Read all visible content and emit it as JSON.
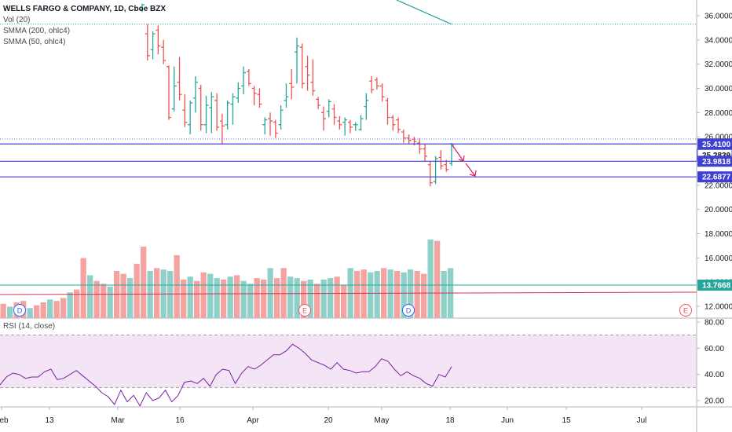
{
  "header": {
    "symbol": "WELLS FARGO & COMPANY, 1D, Cboe BZX",
    "indicators": [
      "Vol (20)",
      "SMMA (200, ohlc4)",
      "SMMA (50, ohlc4)"
    ]
  },
  "rsi_panel": {
    "label": "RSI (14, close)"
  },
  "colors": {
    "up": "#26a69a",
    "down": "#ef5350",
    "volume_up": "#8fd1c9",
    "volume_down": "#f5a3a1",
    "horizontal_line": "#3f3fd0",
    "smma200": "#26a69a",
    "smma50": "#d5334e",
    "rsi_line": "#7b1fa2",
    "rsi_band": "#f3e5f5"
  },
  "chart_data": [
    {
      "type": "candlestick",
      "title": "WELLS FARGO & COMPANY, 1D, Cboe BZX",
      "x_tick_labels": [
        "Feb",
        "13",
        "Mar",
        "16",
        "Apr",
        "20",
        "May",
        "18",
        "Jun",
        "15",
        "Jul"
      ],
      "y_ticks": [
        "36.0000",
        "34.0000",
        "32.0000",
        "30.0000",
        "28.0000",
        "26.0000",
        "24.0000",
        "22.0000",
        "20.0000",
        "18.0000",
        "16.0000",
        "14.0000",
        "12.0000"
      ],
      "ylim": [
        11,
        37
      ],
      "bars": [
        {
          "o": 36.5,
          "h": 37.0,
          "l": 36.3,
          "c": 36.9
        },
        {
          "o": 34.5,
          "h": 35.3,
          "l": 32.3,
          "c": 32.7
        },
        {
          "o": 33.2,
          "h": 34.7,
          "l": 32.4,
          "c": 34.5
        },
        {
          "o": 34.8,
          "h": 35.2,
          "l": 32.8,
          "c": 33.5
        },
        {
          "o": 33.4,
          "h": 34.0,
          "l": 32.0,
          "c": 32.3
        },
        {
          "o": 31.8,
          "h": 31.9,
          "l": 27.4,
          "c": 27.6
        },
        {
          "o": 28.3,
          "h": 31.8,
          "l": 28.1,
          "c": 30.2
        },
        {
          "o": 30.5,
          "h": 32.6,
          "l": 29.0,
          "c": 29.5
        },
        {
          "o": 28.2,
          "h": 29.5,
          "l": 26.8,
          "c": 27.2
        },
        {
          "o": 27.0,
          "h": 29.0,
          "l": 26.2,
          "c": 28.8
        },
        {
          "o": 29.2,
          "h": 31.0,
          "l": 28.0,
          "c": 30.5
        },
        {
          "o": 30.0,
          "h": 30.3,
          "l": 26.5,
          "c": 27.0
        },
        {
          "o": 27.0,
          "h": 29.4,
          "l": 26.3,
          "c": 28.6
        },
        {
          "o": 28.4,
          "h": 29.7,
          "l": 26.3,
          "c": 29.3
        },
        {
          "o": 29.0,
          "h": 29.6,
          "l": 26.5,
          "c": 26.8
        },
        {
          "o": 27.3,
          "h": 27.9,
          "l": 25.4,
          "c": 26.9
        },
        {
          "o": 27.0,
          "h": 29.0,
          "l": 26.6,
          "c": 28.8
        },
        {
          "o": 28.7,
          "h": 29.6,
          "l": 27.0,
          "c": 29.3
        },
        {
          "o": 29.2,
          "h": 30.5,
          "l": 28.8,
          "c": 30.0
        },
        {
          "o": 30.2,
          "h": 31.8,
          "l": 29.5,
          "c": 31.3
        },
        {
          "o": 31.4,
          "h": 31.6,
          "l": 30.2,
          "c": 30.4
        },
        {
          "o": 30.0,
          "h": 30.2,
          "l": 28.6,
          "c": 29.6
        },
        {
          "o": 29.5,
          "h": 30.0,
          "l": 28.4,
          "c": 28.7
        },
        {
          "o": 27.0,
          "h": 27.6,
          "l": 26.2,
          "c": 27.4
        },
        {
          "o": 27.5,
          "h": 28.0,
          "l": 26.1,
          "c": 27.3
        },
        {
          "o": 27.2,
          "h": 27.4,
          "l": 25.9,
          "c": 26.3
        },
        {
          "o": 27.0,
          "h": 28.6,
          "l": 26.6,
          "c": 28.2
        },
        {
          "o": 29.0,
          "h": 30.4,
          "l": 28.4,
          "c": 29.3
        },
        {
          "o": 30.4,
          "h": 31.6,
          "l": 29.1,
          "c": 30.1
        },
        {
          "o": 33.0,
          "h": 34.2,
          "l": 30.4,
          "c": 33.5
        },
        {
          "o": 33.4,
          "h": 33.7,
          "l": 30.0,
          "c": 30.4
        },
        {
          "o": 31.8,
          "h": 32.7,
          "l": 29.8,
          "c": 31.1
        },
        {
          "o": 30.5,
          "h": 32.4,
          "l": 29.4,
          "c": 29.8
        },
        {
          "o": 29.1,
          "h": 29.3,
          "l": 28.3,
          "c": 28.6
        },
        {
          "o": 28.0,
          "h": 28.5,
          "l": 26.5,
          "c": 27.5
        },
        {
          "o": 28.1,
          "h": 29.1,
          "l": 27.6,
          "c": 28.9
        },
        {
          "o": 28.3,
          "h": 28.7,
          "l": 27.0,
          "c": 27.6
        },
        {
          "o": 27.3,
          "h": 27.7,
          "l": 26.6,
          "c": 27.0
        },
        {
          "o": 27.2,
          "h": 27.6,
          "l": 26.1,
          "c": 27.4
        },
        {
          "o": 27.2,
          "h": 27.4,
          "l": 26.3,
          "c": 26.8
        },
        {
          "o": 27.0,
          "h": 27.2,
          "l": 26.5,
          "c": 27.0
        },
        {
          "o": 26.6,
          "h": 27.8,
          "l": 26.5,
          "c": 27.5
        },
        {
          "o": 28.5,
          "h": 29.6,
          "l": 27.4,
          "c": 29.0
        },
        {
          "o": 30.6,
          "h": 31.0,
          "l": 29.6,
          "c": 29.9
        },
        {
          "o": 30.7,
          "h": 30.9,
          "l": 29.9,
          "c": 30.2
        },
        {
          "o": 30.2,
          "h": 30.4,
          "l": 28.9,
          "c": 29.3
        },
        {
          "o": 29.0,
          "h": 29.2,
          "l": 27.0,
          "c": 27.6
        },
        {
          "o": 27.6,
          "h": 27.8,
          "l": 26.5,
          "c": 27.0
        },
        {
          "o": 27.4,
          "h": 27.6,
          "l": 26.3,
          "c": 26.6
        },
        {
          "o": 26.4,
          "h": 26.6,
          "l": 25.5,
          "c": 25.9
        },
        {
          "o": 25.9,
          "h": 26.2,
          "l": 25.4,
          "c": 25.7
        },
        {
          "o": 25.8,
          "h": 26.0,
          "l": 25.3,
          "c": 25.6
        },
        {
          "o": 25.5,
          "h": 25.9,
          "l": 24.6,
          "c": 25.0
        },
        {
          "o": 25.0,
          "h": 25.4,
          "l": 24.0,
          "c": 24.4
        },
        {
          "o": 23.7,
          "h": 24.0,
          "l": 21.9,
          "c": 22.2
        },
        {
          "o": 22.3,
          "h": 24.4,
          "l": 22.1,
          "c": 24.2
        },
        {
          "o": 24.3,
          "h": 24.9,
          "l": 23.3,
          "c": 23.6
        },
        {
          "o": 23.7,
          "h": 24.1,
          "l": 23.1,
          "c": 23.3
        },
        {
          "o": 23.8,
          "h": 25.5,
          "l": 23.6,
          "c": 25.3
        }
      ]
    },
    {
      "type": "bar",
      "title": "Vol (20)",
      "ylim": [
        0,
        100
      ],
      "values": [
        10,
        8,
        11,
        12,
        7,
        9,
        11,
        13,
        12,
        14,
        18,
        20,
        42,
        30,
        26,
        24,
        22,
        33,
        31,
        28,
        38,
        50,
        33,
        35,
        34,
        33,
        44,
        27,
        29,
        26,
        32,
        31,
        28,
        27,
        29,
        30,
        26,
        24,
        28,
        27,
        35,
        28,
        35,
        29,
        28,
        26,
        27,
        24,
        27,
        28,
        29,
        23,
        35,
        33,
        34,
        32,
        33,
        35,
        34,
        33,
        32,
        34,
        33,
        31,
        55,
        54,
        33,
        35
      ]
    },
    {
      "type": "line",
      "title": "RSI (14, close)",
      "y_ticks": [
        "80.00",
        "60.00",
        "40.00",
        "20.00"
      ],
      "ylim": [
        10,
        85
      ],
      "bands": [
        70,
        30
      ],
      "values": [
        32,
        38,
        41,
        40,
        37,
        38,
        38,
        42,
        44,
        36,
        37,
        40,
        43,
        39,
        35,
        31,
        26,
        23,
        17,
        28,
        19,
        24,
        16,
        26,
        20,
        22,
        28,
        19,
        24,
        34,
        35,
        33,
        37,
        31,
        40,
        44,
        43,
        33,
        41,
        46,
        44,
        47,
        51,
        55,
        55,
        58,
        63,
        60,
        56,
        51,
        49,
        47,
        44,
        49,
        44,
        43,
        41,
        42,
        42,
        46,
        52,
        50,
        44,
        39,
        42,
        39,
        37,
        33,
        31,
        40,
        38,
        46
      ]
    }
  ],
  "price_labels": [
    "25.4100",
    "25.2839",
    "23.9818",
    "22.6877",
    "13.7668"
  ],
  "event_markers": [
    "D",
    "E",
    "D",
    "E"
  ]
}
